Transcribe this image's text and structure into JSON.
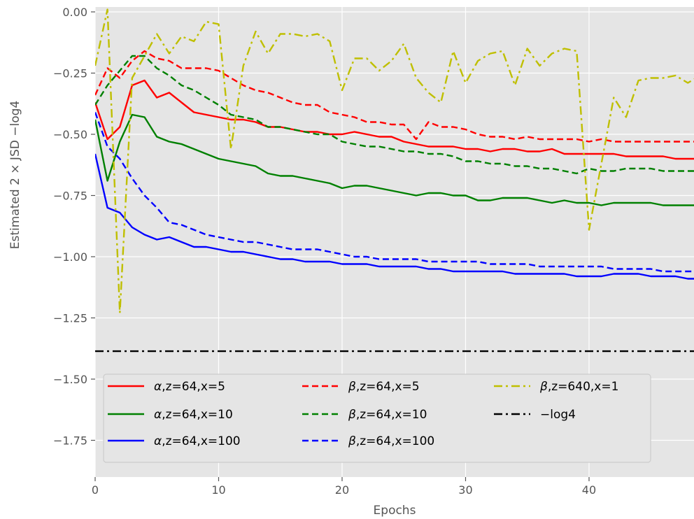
{
  "chart_data": {
    "type": "line",
    "title": "",
    "xlabel": "Epochs",
    "ylabel": "Estimated 2 × JSD −log4",
    "xlim": [
      0,
      48.5
    ],
    "ylim": [
      -1.9,
      0.02
    ],
    "xticks": [
      0,
      10,
      20,
      30,
      40
    ],
    "xtick_labels": [
      "0",
      "10",
      "20",
      "30",
      "40"
    ],
    "yticks": [
      0.0,
      -0.25,
      -0.5,
      -0.75,
      -1.0,
      -1.25,
      -1.5,
      -1.75
    ],
    "ytick_labels": [
      "0.00",
      "−0.25",
      "−0.50",
      "−0.75",
      "−1.00",
      "−1.25",
      "−1.50",
      "−1.75"
    ],
    "grid": true,
    "legend_placement": "lower-left",
    "x": [
      0,
      1,
      2,
      3,
      4,
      5,
      6,
      7,
      8,
      9,
      10,
      11,
      12,
      13,
      14,
      15,
      16,
      17,
      18,
      19,
      20,
      21,
      22,
      23,
      24,
      25,
      26,
      27,
      28,
      29,
      30,
      31,
      32,
      33,
      34,
      35,
      36,
      37,
      38,
      39,
      40,
      41,
      42,
      43,
      44,
      45,
      46,
      47,
      48,
      49
    ],
    "series": [
      {
        "name": "α,z=64,x=5",
        "label_greek": "α",
        "label_rest": ",z=64,x=5",
        "color": "#ff0000",
        "dash": "solid",
        "values": [
          -0.37,
          -0.52,
          -0.47,
          -0.3,
          -0.28,
          -0.35,
          -0.33,
          -0.37,
          -0.41,
          -0.42,
          -0.43,
          -0.44,
          -0.44,
          -0.45,
          -0.47,
          -0.47,
          -0.48,
          -0.49,
          -0.49,
          -0.5,
          -0.5,
          -0.49,
          -0.5,
          -0.51,
          -0.51,
          -0.53,
          -0.54,
          -0.55,
          -0.55,
          -0.55,
          -0.56,
          -0.56,
          -0.57,
          -0.56,
          -0.56,
          -0.57,
          -0.57,
          -0.56,
          -0.58,
          -0.58,
          -0.58,
          -0.58,
          -0.58,
          -0.59,
          -0.59,
          -0.59,
          -0.59,
          -0.6,
          -0.6,
          -0.6
        ]
      },
      {
        "name": "α,z=64,x=10",
        "label_greek": "α",
        "label_rest": ",z=64,x=10",
        "color": "#008000",
        "dash": "solid",
        "values": [
          -0.44,
          -0.69,
          -0.53,
          -0.42,
          -0.43,
          -0.51,
          -0.53,
          -0.54,
          -0.56,
          -0.58,
          -0.6,
          -0.61,
          -0.62,
          -0.63,
          -0.66,
          -0.67,
          -0.67,
          -0.68,
          -0.69,
          -0.7,
          -0.72,
          -0.71,
          -0.71,
          -0.72,
          -0.73,
          -0.74,
          -0.75,
          -0.74,
          -0.74,
          -0.75,
          -0.75,
          -0.77,
          -0.77,
          -0.76,
          -0.76,
          -0.76,
          -0.77,
          -0.78,
          -0.77,
          -0.78,
          -0.78,
          -0.79,
          -0.78,
          -0.78,
          -0.78,
          -0.78,
          -0.79,
          -0.79,
          -0.79,
          -0.79
        ]
      },
      {
        "name": "α,z=64,x=100",
        "label_greek": "α",
        "label_rest": ",z=64,x=100",
        "color": "#0000ff",
        "dash": "solid",
        "values": [
          -0.58,
          -0.8,
          -0.82,
          -0.88,
          -0.91,
          -0.93,
          -0.92,
          -0.94,
          -0.96,
          -0.96,
          -0.97,
          -0.98,
          -0.98,
          -0.99,
          -1.0,
          -1.01,
          -1.01,
          -1.02,
          -1.02,
          -1.02,
          -1.03,
          -1.03,
          -1.03,
          -1.04,
          -1.04,
          -1.04,
          -1.04,
          -1.05,
          -1.05,
          -1.06,
          -1.06,
          -1.06,
          -1.06,
          -1.06,
          -1.07,
          -1.07,
          -1.07,
          -1.07,
          -1.07,
          -1.08,
          -1.08,
          -1.08,
          -1.07,
          -1.07,
          -1.07,
          -1.08,
          -1.08,
          -1.08,
          -1.09,
          -1.09
        ]
      },
      {
        "name": "β,z=64,x=5",
        "label_greek": "β",
        "label_rest": ",z=64,x=5",
        "color": "#ff0000",
        "dash": "dashed",
        "values": [
          -0.34,
          -0.23,
          -0.27,
          -0.2,
          -0.16,
          -0.19,
          -0.2,
          -0.23,
          -0.23,
          -0.23,
          -0.24,
          -0.27,
          -0.3,
          -0.32,
          -0.33,
          -0.35,
          -0.37,
          -0.38,
          -0.38,
          -0.41,
          -0.42,
          -0.43,
          -0.45,
          -0.45,
          -0.46,
          -0.46,
          -0.52,
          -0.45,
          -0.47,
          -0.47,
          -0.48,
          -0.5,
          -0.51,
          -0.51,
          -0.52,
          -0.51,
          -0.52,
          -0.52,
          -0.52,
          -0.52,
          -0.53,
          -0.52,
          -0.53,
          -0.53,
          -0.53,
          -0.53,
          -0.53,
          -0.53,
          -0.53,
          -0.53
        ]
      },
      {
        "name": "β,z=64,x=10",
        "label_greek": "β",
        "label_rest": ",z=64,x=10",
        "color": "#008000",
        "dash": "dashed",
        "values": [
          -0.38,
          -0.3,
          -0.24,
          -0.18,
          -0.18,
          -0.23,
          -0.26,
          -0.3,
          -0.32,
          -0.35,
          -0.38,
          -0.42,
          -0.43,
          -0.44,
          -0.47,
          -0.47,
          -0.48,
          -0.49,
          -0.5,
          -0.5,
          -0.53,
          -0.54,
          -0.55,
          -0.55,
          -0.56,
          -0.57,
          -0.57,
          -0.58,
          -0.58,
          -0.59,
          -0.61,
          -0.61,
          -0.62,
          -0.62,
          -0.63,
          -0.63,
          -0.64,
          -0.64,
          -0.65,
          -0.66,
          -0.64,
          -0.65,
          -0.65,
          -0.64,
          -0.64,
          -0.64,
          -0.65,
          -0.65,
          -0.65,
          -0.65
        ]
      },
      {
        "name": "β,z=64,x=100",
        "label_greek": "β",
        "label_rest": ",z=64,x=100",
        "color": "#0000ff",
        "dash": "dashed",
        "values": [
          -0.41,
          -0.55,
          -0.6,
          -0.68,
          -0.75,
          -0.8,
          -0.86,
          -0.87,
          -0.89,
          -0.91,
          -0.92,
          -0.93,
          -0.94,
          -0.94,
          -0.95,
          -0.96,
          -0.97,
          -0.97,
          -0.97,
          -0.98,
          -0.99,
          -1.0,
          -1.0,
          -1.01,
          -1.01,
          -1.01,
          -1.01,
          -1.02,
          -1.02,
          -1.02,
          -1.02,
          -1.02,
          -1.03,
          -1.03,
          -1.03,
          -1.03,
          -1.04,
          -1.04,
          -1.04,
          -1.04,
          -1.04,
          -1.04,
          -1.05,
          -1.05,
          -1.05,
          -1.05,
          -1.06,
          -1.06,
          -1.06,
          -1.06
        ]
      },
      {
        "name": "β,z=640,x=1",
        "label_greek": "β",
        "label_rest": ",z=640,x=1",
        "color": "#bfbf00",
        "dash": "dashdot",
        "values": [
          -0.22,
          0.01,
          -1.23,
          -0.27,
          -0.18,
          -0.09,
          -0.17,
          -0.1,
          -0.12,
          -0.04,
          -0.05,
          -0.56,
          -0.22,
          -0.08,
          -0.17,
          -0.09,
          -0.09,
          -0.1,
          -0.09,
          -0.12,
          -0.32,
          -0.19,
          -0.19,
          -0.24,
          -0.2,
          -0.13,
          -0.27,
          -0.33,
          -0.37,
          -0.16,
          -0.29,
          -0.2,
          -0.17,
          -0.16,
          -0.3,
          -0.15,
          -0.22,
          -0.17,
          -0.15,
          -0.16,
          -0.89,
          -0.62,
          -0.35,
          -0.43,
          -0.28,
          -0.27,
          -0.27,
          -0.26,
          -0.29,
          -0.26
        ]
      },
      {
        "name": "−log4",
        "label_greek": "",
        "label_rest": "−log4",
        "color": "#000000",
        "dash": "dashdot",
        "values": [
          -1.386,
          -1.386,
          -1.386,
          -1.386,
          -1.386,
          -1.386,
          -1.386,
          -1.386,
          -1.386,
          -1.386,
          -1.386,
          -1.386,
          -1.386,
          -1.386,
          -1.386,
          -1.386,
          -1.386,
          -1.386,
          -1.386,
          -1.386,
          -1.386,
          -1.386,
          -1.386,
          -1.386,
          -1.386,
          -1.386,
          -1.386,
          -1.386,
          -1.386,
          -1.386,
          -1.386,
          -1.386,
          -1.386,
          -1.386,
          -1.386,
          -1.386,
          -1.386,
          -1.386,
          -1.386,
          -1.386,
          -1.386,
          -1.386,
          -1.386,
          -1.386,
          -1.386,
          -1.386,
          -1.386,
          -1.386,
          -1.386,
          -1.386
        ]
      }
    ]
  },
  "style": {
    "plot_background": "#e5e5e5",
    "grid_color": "#ffffff",
    "legend_background": "#e5e5e5",
    "legend_border": "#cccccc",
    "tick_color": "#555555"
  }
}
